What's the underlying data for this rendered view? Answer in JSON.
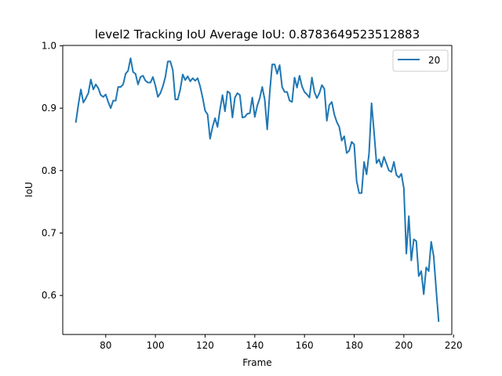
{
  "chart_data": {
    "type": "line",
    "title": "level2 Tracking IoU   Average IoU: 0.8783649523512883",
    "xlabel": "Frame",
    "ylabel": "IoU",
    "xlim": [
      62.7,
      219.3
    ],
    "ylim": [
      0.5375,
      1.0005
    ],
    "xticks": [
      80,
      100,
      120,
      140,
      160,
      180,
      200,
      220
    ],
    "yticks": [
      0.6,
      0.7,
      0.8,
      0.9,
      1.0
    ],
    "xtick_labels": [
      "80",
      "100",
      "120",
      "140",
      "160",
      "180",
      "200",
      "220"
    ],
    "ytick_labels": [
      "0.6",
      "0.7",
      "0.8",
      "0.9",
      "1.0"
    ],
    "grid": false,
    "legend": {
      "position": "top-right",
      "entries": [
        "20"
      ]
    },
    "colors": {
      "series": "#1f77b4",
      "axes": "#000000",
      "legend_border": "#cccccc"
    },
    "series": [
      {
        "name": "20",
        "x": [
          68,
          69,
          70,
          71,
          72,
          73,
          74,
          75,
          76,
          77,
          78,
          79,
          80,
          81,
          82,
          83,
          84,
          85,
          86,
          87,
          88,
          89,
          90,
          91,
          92,
          93,
          94,
          95,
          96,
          97,
          98,
          99,
          100,
          101,
          102,
          103,
          104,
          105,
          106,
          107,
          108,
          109,
          110,
          111,
          112,
          113,
          114,
          115,
          116,
          117,
          118,
          119,
          120,
          121,
          122,
          123,
          124,
          125,
          126,
          127,
          128,
          129,
          130,
          131,
          132,
          133,
          134,
          135,
          136,
          137,
          138,
          139,
          140,
          141,
          142,
          143,
          144,
          145,
          146,
          147,
          148,
          149,
          150,
          151,
          152,
          153,
          154,
          155,
          156,
          157,
          158,
          159,
          160,
          161,
          162,
          163,
          164,
          165,
          166,
          167,
          168,
          169,
          170,
          171,
          172,
          173,
          174,
          175,
          176,
          177,
          178,
          179,
          180,
          181,
          182,
          183,
          184,
          185,
          186,
          187,
          188,
          189,
          190,
          191,
          192,
          193,
          194,
          195,
          196,
          197,
          198,
          199,
          200,
          201,
          202,
          203,
          204,
          205,
          206,
          207,
          208,
          209,
          210,
          211,
          212,
          213,
          214
        ],
        "y": [
          0.878,
          0.906,
          0.93,
          0.909,
          0.916,
          0.924,
          0.946,
          0.93,
          0.938,
          0.932,
          0.921,
          0.918,
          0.922,
          0.91,
          0.9,
          0.912,
          0.912,
          0.934,
          0.934,
          0.938,
          0.955,
          0.96,
          0.98,
          0.958,
          0.955,
          0.938,
          0.95,
          0.952,
          0.944,
          0.941,
          0.941,
          0.95,
          0.936,
          0.918,
          0.924,
          0.935,
          0.95,
          0.975,
          0.975,
          0.961,
          0.914,
          0.914,
          0.93,
          0.954,
          0.945,
          0.951,
          0.943,
          0.948,
          0.944,
          0.948,
          0.935,
          0.917,
          0.896,
          0.89,
          0.851,
          0.87,
          0.884,
          0.87,
          0.898,
          0.921,
          0.895,
          0.927,
          0.924,
          0.885,
          0.917,
          0.924,
          0.921,
          0.885,
          0.886,
          0.891,
          0.892,
          0.917,
          0.886,
          0.904,
          0.916,
          0.934,
          0.914,
          0.866,
          0.924,
          0.97,
          0.97,
          0.955,
          0.969,
          0.934,
          0.926,
          0.926,
          0.912,
          0.91,
          0.949,
          0.933,
          0.952,
          0.935,
          0.926,
          0.922,
          0.917,
          0.949,
          0.926,
          0.916,
          0.924,
          0.937,
          0.931,
          0.88,
          0.905,
          0.91,
          0.89,
          0.878,
          0.87,
          0.848,
          0.855,
          0.828,
          0.832,
          0.846,
          0.842,
          0.783,
          0.764,
          0.764,
          0.814,
          0.794,
          0.828,
          0.908,
          0.862,
          0.812,
          0.818,
          0.806,
          0.822,
          0.811,
          0.8,
          0.798,
          0.814,
          0.793,
          0.789,
          0.795,
          0.772,
          0.667,
          0.727,
          0.656,
          0.69,
          0.687,
          0.631,
          0.639,
          0.602,
          0.645,
          0.639,
          0.686,
          0.663,
          0.61,
          0.559
        ]
      }
    ]
  }
}
